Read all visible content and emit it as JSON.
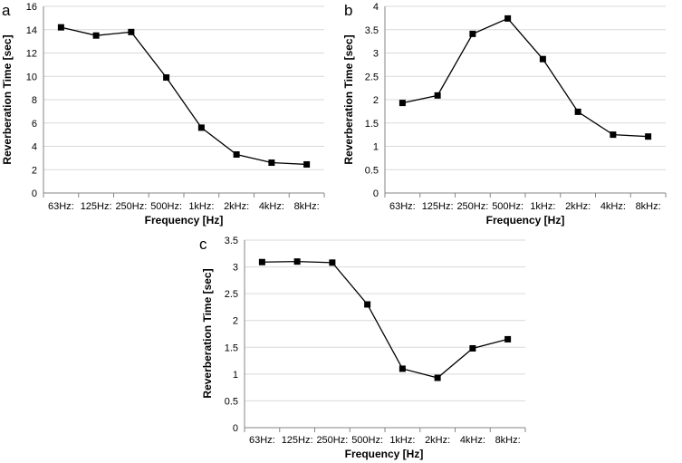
{
  "chart_data": [
    {
      "type": "line",
      "panel_label": "a",
      "categories": [
        "63Hz:",
        "125Hz:",
        "250Hz:",
        "500Hz:",
        "1kHz:",
        "2kHz:",
        "4kHz:",
        "8kHz:"
      ],
      "values": [
        14.2,
        13.5,
        13.8,
        9.9,
        5.6,
        3.3,
        2.6,
        2.45
      ],
      "xlabel": "Frequency [Hz]",
      "ylabel": "Reverberation Time [sec]",
      "ylim": [
        0,
        16
      ],
      "yticks": [
        "0",
        "2",
        "4",
        "6",
        "8",
        "10",
        "12",
        "14",
        "16"
      ],
      "grid": true
    },
    {
      "type": "line",
      "panel_label": "b",
      "categories": [
        "63Hz:",
        "125Hz:",
        "250Hz:",
        "500Hz:",
        "1kHz:",
        "2kHz:",
        "4kHz:",
        "8kHz:"
      ],
      "values": [
        1.93,
        2.09,
        3.41,
        3.74,
        2.87,
        1.74,
        1.25,
        1.21
      ],
      "xlabel": "Frequency [Hz]",
      "ylabel": "Reverberation Time [sec]",
      "ylim": [
        0,
        4
      ],
      "yticks": [
        "0",
        "0.5",
        "1",
        "1.5",
        "2",
        "2.5",
        "3",
        "3.5",
        "4"
      ],
      "grid": true
    },
    {
      "type": "line",
      "panel_label": "c",
      "categories": [
        "63Hz:",
        "125Hz:",
        "250Hz:",
        "500Hz:",
        "1kHz:",
        "2kHz:",
        "4kHz:",
        "8kHz:"
      ],
      "values": [
        3.09,
        3.1,
        3.08,
        2.3,
        1.1,
        0.93,
        1.48,
        1.65
      ],
      "xlabel": "Frequency [Hz]",
      "ylabel": "Reverberation Time [sec]",
      "ylim": [
        0,
        3.5
      ],
      "yticks": [
        "0",
        "0.5",
        "1",
        "1.5",
        "2",
        "2.5",
        "3",
        "3.5"
      ],
      "grid": true
    }
  ]
}
